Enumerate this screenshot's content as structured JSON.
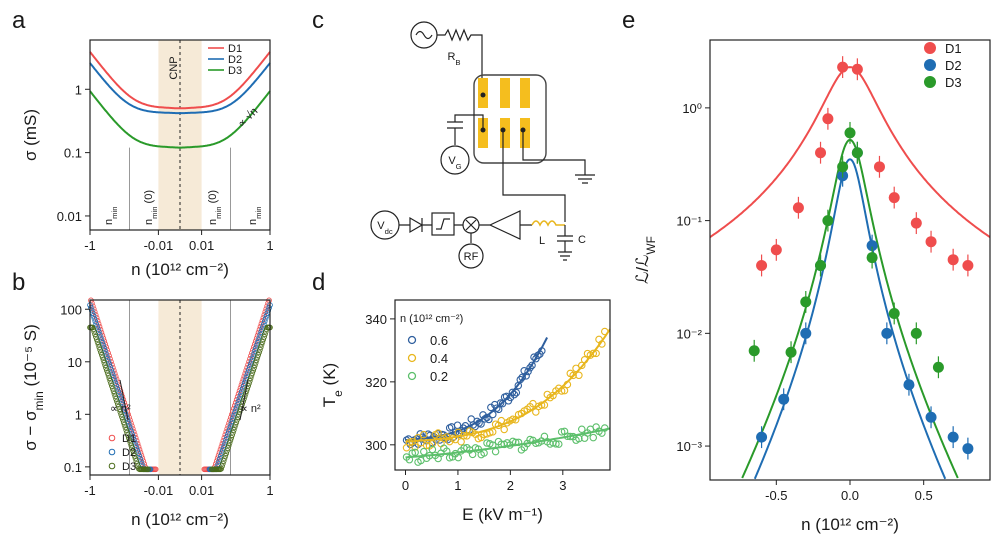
{
  "colors": {
    "d1": "#ef4d4d",
    "d2": "#1f6db3",
    "d3": "#2a9a2a",
    "d3b": "#4a6b1a",
    "cnpShade": "#f6ead7",
    "gold": "#f5be1e",
    "yellow": "#e8b61d",
    "blue": "#2f5f9e",
    "green": "#5cbf6b"
  },
  "panels": {
    "a": "a",
    "b": "b",
    "c": "c",
    "d": "d",
    "e": "e"
  },
  "chart_data": [
    {
      "id": "a",
      "type": "line",
      "xscale": "symlog",
      "yscale": "log",
      "xlabel": "n (10¹² cm⁻²)",
      "ylabel": "σ (mS)",
      "ylim": [
        0.006,
        6
      ],
      "xticks": [
        "-1",
        "-0.01",
        "0.01",
        "1"
      ],
      "yticks": [
        "0.01",
        "0.1",
        "1"
      ],
      "legend": [
        "D1",
        "D2",
        "D3"
      ],
      "series": [
        {
          "name": "D1",
          "plateau": 0.5,
          "nEdge": 0.05,
          "atEdge": 3.8
        },
        {
          "name": "D2",
          "plateau": 0.42,
          "nEdge": 0.07,
          "atEdge": 2.2
        },
        {
          "name": "D3",
          "plateau": 0.12,
          "nEdge": 0.05,
          "atEdge": 0.55
        }
      ],
      "annotations": {
        "cnp": "CNP",
        "nmin": "n",
        "nminSub": "min",
        "nmin0": "(0)",
        "sqrt": "∝ √n"
      }
    },
    {
      "id": "b",
      "type": "scatter",
      "xlabel": "n (10¹² cm⁻²)",
      "ylabel": "σ − σ",
      "ylabelSub": "min",
      "ylabelUnit": " (10⁻⁵ S)",
      "ylim": [
        0.07,
        150
      ],
      "xticks": [
        "-1",
        "-0.01",
        "0.01",
        "1"
      ],
      "yticks": [
        "0.1",
        "1",
        "10",
        "100"
      ],
      "legend": [
        "D1",
        "D2",
        "D3"
      ],
      "annotations": {
        "n2left": "∝ n²",
        "n2right": "∝ n²"
      }
    },
    {
      "id": "d",
      "type": "scatter",
      "xlabel": "E (kV m⁻¹)",
      "ylabel": "T",
      "ylabelSub": "e",
      "ylabelUnit": " (K)",
      "xlim": [
        -0.2,
        3.9
      ],
      "ylim": [
        292,
        346
      ],
      "xticks": [
        0,
        1,
        2,
        3
      ],
      "yticks": [
        300,
        320,
        340
      ],
      "legendTitle": "n (10¹² cm⁻²)",
      "series": [
        {
          "name": "0.6",
          "xmax": 2.6,
          "fit": [
            301.5,
            1.5,
            0.0,
            1.45
          ]
        },
        {
          "name": "0.4",
          "xmax": 3.8,
          "fit": [
            301.0,
            1.1,
            0.0,
            0.53
          ]
        },
        {
          "name": "0.2",
          "xmax": 3.8,
          "fit": [
            296.0,
            1.3,
            0.27,
            0.0
          ]
        }
      ]
    },
    {
      "id": "e",
      "type": "scatter",
      "xlabel": "n (10¹² cm⁻²)",
      "ylabel": "ℒ/ℒ",
      "ylabelSub": "WF",
      "yscale": "log",
      "ylim": [
        0.0005,
        4.0
      ],
      "xlim": [
        -0.95,
        0.95
      ],
      "xticks": [
        "-0.5",
        "0.0",
        "0.5"
      ],
      "yticks": [
        "10⁻³",
        "10⁻²",
        "10⁻¹",
        "10⁰"
      ],
      "legend": [
        "D1",
        "D2",
        "D3"
      ],
      "series": [
        {
          "name": "D1",
          "x": [
            -0.6,
            -0.5,
            -0.35,
            -0.2,
            -0.15,
            -0.05,
            0.05,
            0.2,
            0.3,
            0.45,
            0.55,
            0.7,
            0.8
          ],
          "y": [
            0.04,
            0.055,
            0.13,
            0.4,
            0.8,
            2.3,
            2.2,
            0.3,
            0.16,
            0.095,
            0.065,
            0.045,
            0.04
          ]
        },
        {
          "name": "D2",
          "x": [
            -0.6,
            -0.45,
            -0.3,
            -0.2,
            -0.05,
            0.05,
            0.15,
            0.25,
            0.4,
            0.55,
            0.7,
            0.8
          ],
          "y": [
            0.0012,
            0.0026,
            0.01,
            0.04,
            0.25,
            0.4,
            0.06,
            0.01,
            0.0035,
            0.0018,
            0.0012,
            0.00095
          ]
        },
        {
          "name": "D3",
          "x": [
            -0.65,
            -0.4,
            -0.3,
            -0.2,
            -0.15,
            -0.05,
            0.0,
            0.05,
            0.15,
            0.3,
            0.45,
            0.6
          ],
          "y": [
            0.007,
            0.0068,
            0.019,
            0.04,
            0.1,
            0.3,
            0.6,
            0.4,
            0.047,
            0.015,
            0.01,
            0.005
          ]
        }
      ],
      "fits": [
        {
          "name": "D1",
          "peak": 2.3,
          "width": 0.17
        },
        {
          "name": "D2",
          "peak": 0.35,
          "width": 0.09
        },
        {
          "name": "D3",
          "peak": 0.52,
          "width": 0.1
        }
      ]
    }
  ],
  "circuit": {
    "rb": "R",
    "rbSub": "B",
    "vg": "V",
    "vgSub": "G",
    "vdc": "V",
    "vdcSub": "dc",
    "rf": "RF",
    "l": "L",
    "c": "C"
  }
}
